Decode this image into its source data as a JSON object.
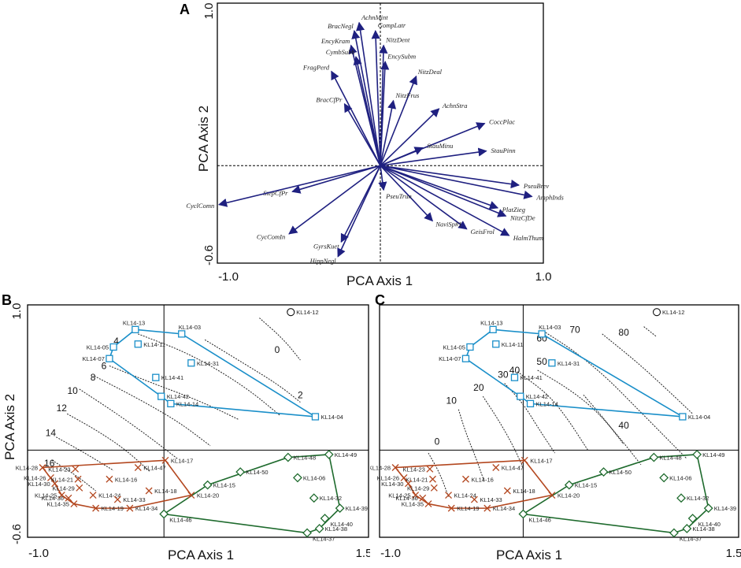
{
  "colors": {
    "arrow": "#1f2080",
    "blue": "#1a8fc9",
    "red": "#b3471f",
    "green": "#1f6b2e",
    "contour": "#222222",
    "open": "#111111"
  },
  "panels": {
    "A": {
      "label": "A",
      "xlabel": "PCA Axis 1",
      "ylabel": "PCA Axis 2"
    },
    "B": {
      "label": "B",
      "xlabel": "PCA Axis 1",
      "ylabel": "PCA Axis 2"
    },
    "C": {
      "label": "C",
      "xlabel": "PCA Axis 1",
      "ylabel": "PCA Axis 2"
    }
  },
  "chart_data": [
    {
      "panel": "A",
      "type": "biplot",
      "title": "",
      "xlabel": "PCA Axis 1",
      "ylabel": "PCA Axis 2",
      "xlim": [
        -1.0,
        1.0
      ],
      "ylim": [
        -0.6,
        1.0
      ],
      "xticks": [
        "-1.0",
        "1.0"
      ],
      "yticks": [
        "-0.6",
        "1.0"
      ],
      "vectors": [
        {
          "name": "AchnMint",
          "x": -0.13,
          "y": 0.88
        },
        {
          "name": "BracNegl",
          "x": -0.16,
          "y": 0.83
        },
        {
          "name": "GompLatr",
          "x": -0.03,
          "y": 0.83
        },
        {
          "name": "EncyKram",
          "x": -0.18,
          "y": 0.74
        },
        {
          "name": "NitzDent",
          "x": 0.02,
          "y": 0.74
        },
        {
          "name": "CymbSubh",
          "x": -0.15,
          "y": 0.67
        },
        {
          "name": "EncySubm",
          "x": 0.03,
          "y": 0.64
        },
        {
          "name": "FragPerd",
          "x": -0.3,
          "y": 0.58
        },
        {
          "name": "NitzDeal",
          "x": 0.22,
          "y": 0.55
        },
        {
          "name": "NitzFrus",
          "x": 0.08,
          "y": 0.4
        },
        {
          "name": "BracCfPr",
          "x": -0.22,
          "y": 0.38
        },
        {
          "name": "AchnStra",
          "x": 0.36,
          "y": 0.35
        },
        {
          "name": "CoccPlac",
          "x": 0.64,
          "y": 0.26
        },
        {
          "name": "StauMinu",
          "x": 0.26,
          "y": 0.11
        },
        {
          "name": "StauPinn",
          "x": 0.65,
          "y": 0.09
        },
        {
          "name": "PseuBrev",
          "x": 0.85,
          "y": -0.12
        },
        {
          "name": "AmphInds",
          "x": 0.93,
          "y": -0.19
        },
        {
          "name": "PlatZieg",
          "x": 0.72,
          "y": -0.26
        },
        {
          "name": "NitzCfDe",
          "x": 0.77,
          "y": -0.31
        },
        {
          "name": "HalmThum",
          "x": 0.79,
          "y": -0.43
        },
        {
          "name": "GeisFrol",
          "x": 0.53,
          "y": -0.39
        },
        {
          "name": "NaviSp#1",
          "x": 0.32,
          "y": -0.34
        },
        {
          "name": "PseuTrun",
          "x": 0.02,
          "y": -0.15
        },
        {
          "name": "StepCfPr",
          "x": -0.54,
          "y": -0.16
        },
        {
          "name": "CyclComn",
          "x": -0.99,
          "y": -0.24
        },
        {
          "name": "CycComIn",
          "x": -0.56,
          "y": -0.42
        },
        {
          "name": "GyrsKuet",
          "x": -0.24,
          "y": -0.47
        },
        {
          "name": "HippNegl",
          "x": -0.26,
          "y": -0.56
        }
      ],
      "contours": []
    },
    {
      "panel": "B",
      "type": "scatter",
      "title": "",
      "xlabel": "PCA Axis 1",
      "ylabel": "PCA Axis 2",
      "xlim": [
        -1.0,
        1.5
      ],
      "ylim": [
        -0.6,
        1.0
      ],
      "xticks": [
        "-1.0",
        "1.5"
      ],
      "yticks": [
        "-0.6",
        "1.0"
      ],
      "series": [
        {
          "name": "blue",
          "marker": "square",
          "points": [
            {
              "id": "KL14-13",
              "x": -0.21,
              "y": 0.83
            },
            {
              "id": "KL14-03",
              "x": 0.13,
              "y": 0.8
            },
            {
              "id": "KL14-05",
              "x": -0.37,
              "y": 0.71
            },
            {
              "id": "KL14-11",
              "x": -0.19,
              "y": 0.73
            },
            {
              "id": "KL14-07",
              "x": -0.4,
              "y": 0.63
            },
            {
              "id": "KL14-31",
              "x": 0.2,
              "y": 0.6
            },
            {
              "id": "KL14-41",
              "x": -0.06,
              "y": 0.5
            },
            {
              "id": "KL14-42",
              "x": -0.02,
              "y": 0.37
            },
            {
              "id": "KL14-14",
              "x": 0.05,
              "y": 0.32
            },
            {
              "id": "KL14-04",
              "x": 1.11,
              "y": 0.23
            }
          ]
        },
        {
          "name": "red",
          "marker": "cross",
          "points": [
            {
              "id": "KL14-28",
              "x": -0.89,
              "y": -0.12
            },
            {
              "id": "KL14-23",
              "x": -0.65,
              "y": -0.13
            },
            {
              "id": "KL14-26",
              "x": -0.83,
              "y": -0.19
            },
            {
              "id": "KL14-21",
              "x": -0.63,
              "y": -0.2
            },
            {
              "id": "KL14-30",
              "x": -0.8,
              "y": -0.23
            },
            {
              "id": "KL14-29",
              "x": -0.62,
              "y": -0.26
            },
            {
              "id": "KL14-25",
              "x": -0.75,
              "y": -0.31
            },
            {
              "id": "KL14-36",
              "x": -0.7,
              "y": -0.33
            },
            {
              "id": "KL14-35",
              "x": -0.66,
              "y": -0.37
            },
            {
              "id": "KL14-24",
              "x": -0.52,
              "y": -0.31
            },
            {
              "id": "KL14-19",
              "x": -0.5,
              "y": -0.4
            },
            {
              "id": "KL14-16",
              "x": -0.4,
              "y": -0.2
            },
            {
              "id": "KL14-47",
              "x": -0.19,
              "y": -0.12
            },
            {
              "id": "KL14-17",
              "x": 0.01,
              "y": -0.07
            },
            {
              "id": "KL14-18",
              "x": -0.11,
              "y": -0.28
            },
            {
              "id": "KL14-33",
              "x": -0.34,
              "y": -0.34
            },
            {
              "id": "KL14-34",
              "x": -0.25,
              "y": -0.4
            },
            {
              "id": "KL14-20",
              "x": 0.2,
              "y": -0.31
            }
          ]
        },
        {
          "name": "green",
          "marker": "diamond",
          "points": [
            {
              "id": "KL14-48",
              "x": 0.91,
              "y": -0.05
            },
            {
              "id": "KL14-49",
              "x": 1.21,
              "y": -0.03
            },
            {
              "id": "KL14-50",
              "x": 0.56,
              "y": -0.15
            },
            {
              "id": "KL14-15",
              "x": 0.32,
              "y": -0.24
            },
            {
              "id": "KL14-06",
              "x": 0.98,
              "y": -0.19
            },
            {
              "id": "KL14-32",
              "x": 1.1,
              "y": -0.33
            },
            {
              "id": "KL14-39",
              "x": 1.29,
              "y": -0.4
            },
            {
              "id": "KL14-40",
              "x": 1.18,
              "y": -0.47
            },
            {
              "id": "KL14-46",
              "x": 0.0,
              "y": -0.44
            },
            {
              "id": "KL14-37",
              "x": 1.05,
              "y": -0.57
            },
            {
              "id": "KL14-38",
              "x": 1.14,
              "y": -0.54
            }
          ]
        },
        {
          "name": "outlier",
          "marker": "circle",
          "points": [
            {
              "id": "KL14-12",
              "x": 0.93,
              "y": 0.95
            }
          ]
        }
      ],
      "contours": [
        {
          "label": "0",
          "path": [
            [
              0.7,
              0.91
            ],
            [
              0.88,
              0.76
            ],
            [
              1.0,
              0.62
            ]
          ],
          "at": [
            0.83,
            0.69
          ]
        },
        {
          "label": "2",
          "path": [
            [
              0.3,
              0.76
            ],
            [
              0.58,
              0.6
            ],
            [
              0.84,
              0.45
            ],
            [
              1.0,
              0.33
            ]
          ],
          "at": [
            1.0,
            0.38
          ]
        },
        {
          "label": "4",
          "path": [
            [
              -0.19,
              0.8
            ],
            [
              0.2,
              0.66
            ],
            [
              0.59,
              0.44
            ],
            [
              0.85,
              0.24
            ]
          ],
          "at": [
            -0.35,
            0.75
          ]
        },
        {
          "label": "6",
          "path": [
            [
              -0.4,
              0.58
            ],
            [
              -0.11,
              0.47
            ],
            [
              0.26,
              0.34
            ],
            [
              0.55,
              0.21
            ]
          ],
          "at": [
            -0.44,
            0.58
          ]
        },
        {
          "label": "8",
          "path": [
            [
              -0.51,
              0.51
            ],
            [
              -0.2,
              0.36
            ],
            [
              0.1,
              0.2
            ],
            [
              0.34,
              0.03
            ]
          ],
          "at": [
            -0.52,
            0.5
          ]
        },
        {
          "label": "10",
          "path": [
            [
              -0.62,
              0.42
            ],
            [
              -0.36,
              0.26
            ],
            [
              -0.12,
              0.1
            ],
            [
              0.1,
              -0.06
            ]
          ],
          "at": [
            -0.67,
            0.41
          ]
        },
        {
          "label": "12",
          "path": [
            [
              -0.71,
              0.25
            ],
            [
              -0.5,
              0.14
            ],
            [
              -0.29,
              0.01
            ],
            [
              -0.1,
              -0.15
            ]
          ],
          "at": [
            -0.75,
            0.29
          ]
        },
        {
          "label": "14",
          "path": [
            [
              -0.79,
              0.09
            ],
            [
              -0.58,
              -0.02
            ],
            [
              -0.37,
              -0.14
            ]
          ],
          "at": [
            -0.83,
            0.12
          ]
        },
        {
          "label": "16",
          "path": [
            [
              -0.82,
              -0.07
            ],
            [
              -0.65,
              -0.17
            ],
            [
              -0.5,
              -0.28
            ]
          ],
          "at": [
            -0.84,
            -0.09
          ]
        }
      ]
    },
    {
      "panel": "C",
      "type": "scatter",
      "title": "",
      "xlabel": "PCA Axis 1",
      "ylabel": "PCA Axis 2",
      "xlim": [
        -1.0,
        1.5
      ],
      "ylim": [
        -0.6,
        1.0
      ],
      "xticks": [
        "-1.0",
        "1.5"
      ],
      "yticks": [
        "-0.6",
        "1.0"
      ],
      "series": "same sample scores as panel B",
      "contours": [
        {
          "label": "0",
          "path": [
            [
              -0.66,
              -0.02
            ],
            [
              -0.58,
              -0.16
            ],
            [
              -0.52,
              -0.32
            ]
          ],
          "at": [
            -0.6,
            0.06
          ]
        },
        {
          "label": "10",
          "path": [
            [
              -0.45,
              0.28
            ],
            [
              -0.4,
              0.12
            ],
            [
              -0.33,
              -0.05
            ],
            [
              -0.27,
              -0.22
            ]
          ],
          "at": [
            -0.5,
            0.34
          ]
        },
        {
          "label": "20",
          "path": [
            [
              -0.28,
              0.37
            ],
            [
              -0.18,
              0.22
            ],
            [
              -0.08,
              0.05
            ],
            [
              0.0,
              -0.12
            ]
          ],
          "at": [
            -0.31,
            0.43
          ]
        },
        {
          "label": "30",
          "path": [
            [
              -0.13,
              0.46
            ],
            [
              0.0,
              0.32
            ],
            [
              0.1,
              0.16
            ],
            [
              0.22,
              -0.02
            ]
          ],
          "at": [
            -0.14,
            0.52
          ]
        },
        {
          "label": "40",
          "path": [
            [
              -0.04,
              0.54
            ],
            [
              0.18,
              0.38
            ],
            [
              0.32,
              0.2
            ],
            [
              0.45,
              0.0
            ]
          ],
          "at": [
            -0.06,
            0.55
          ]
        },
        {
          "label": "40",
          "path": [
            [
              0.42,
              0.38
            ],
            [
              0.56,
              0.22
            ],
            [
              0.7,
              0.04
            ]
          ],
          "at": [
            0.7,
            0.17
          ]
        },
        {
          "label": "50",
          "path": [
            [
              0.1,
              0.55
            ],
            [
              0.32,
              0.42
            ],
            [
              0.5,
              0.28
            ],
            [
              0.66,
              0.1
            ],
            [
              0.82,
              -0.1
            ]
          ],
          "at": [
            0.13,
            0.61
          ]
        },
        {
          "label": "60",
          "path": [
            [
              0.14,
              0.82
            ],
            [
              0.36,
              0.68
            ],
            [
              0.58,
              0.5
            ],
            [
              0.78,
              0.3
            ],
            [
              0.98,
              0.1
            ],
            [
              1.14,
              -0.06
            ]
          ],
          "at": [
            0.13,
            0.77
          ]
        },
        {
          "label": "70",
          "path": [
            [
              0.55,
              0.8
            ],
            [
              0.8,
              0.6
            ],
            [
              1.02,
              0.4
            ],
            [
              1.18,
              0.25
            ]
          ],
          "at": [
            0.36,
            0.83
          ]
        },
        {
          "label": "80",
          "path": [
            [
              0.84,
              0.85
            ],
            [
              0.93,
              0.78
            ]
          ],
          "at": [
            0.7,
            0.81
          ]
        }
      ]
    }
  ]
}
